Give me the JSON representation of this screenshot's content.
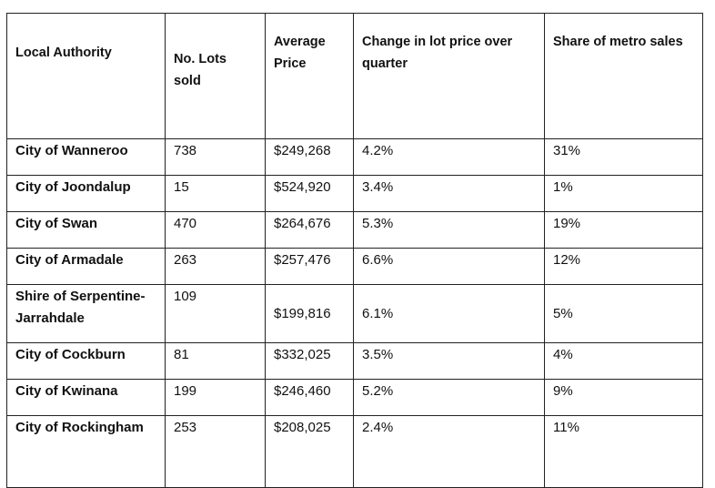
{
  "table": {
    "headers": {
      "authority": "Local Authority",
      "lots": "No. Lots sold",
      "price": "Average Price",
      "change": "Change in lot price over quarter",
      "share": "Share of metro sales"
    },
    "rows": [
      {
        "authority": "City of Wanneroo",
        "lots": "738",
        "price": "$249,268",
        "change": "4.2%",
        "share": "31%"
      },
      {
        "authority": "City of Joondalup",
        "lots": "15",
        "price": "$524,920",
        "change": "3.4%",
        "share": "1%"
      },
      {
        "authority": "City of Swan",
        "lots": "470",
        "price": "$264,676",
        "change": "5.3%",
        "share": "19%"
      },
      {
        "authority": "City of Armadale",
        "lots": "263",
        "price": "$257,476",
        "change": "6.6%",
        "share": "12%"
      },
      {
        "authority": "Shire of Serpentine-Jarrahdale",
        "lots": "109",
        "price": "$199,816",
        "change": "6.1%",
        "share": "5%"
      },
      {
        "authority": "City of Cockburn",
        "lots": "81",
        "price": "$332,025",
        "change": "3.5%",
        "share": "4%"
      },
      {
        "authority": "City of Kwinana",
        "lots": "199",
        "price": "$246,460",
        "change": "5.2%",
        "share": "9%"
      },
      {
        "authority": "City of Rockingham",
        "lots": "253",
        "price": "$208,025",
        "change": "2.4%",
        "share": "11%"
      }
    ]
  }
}
